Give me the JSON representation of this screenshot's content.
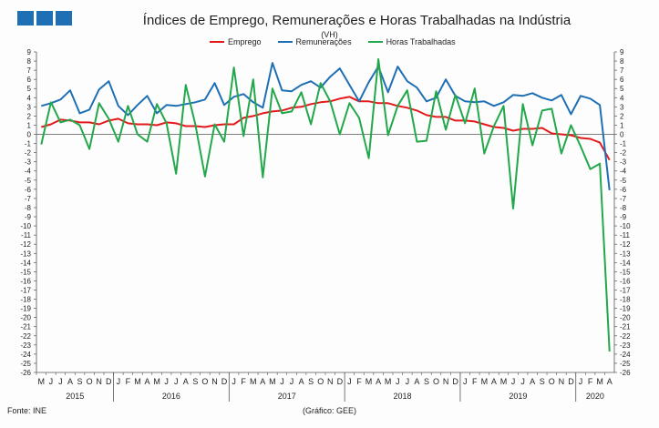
{
  "header": {
    "title": "Índices de Emprego, Remunerações e Horas Trabalhadas na Indústria",
    "unit": "(VH)"
  },
  "footer": {
    "source": "Fonte: INE",
    "graphic": "(Gráfico: GEE)"
  },
  "colors": {
    "emprego": "#e31a1c",
    "remuneracoes": "#1f6fb5",
    "horas": "#22a84a"
  },
  "chart_data": {
    "type": "line",
    "title": "Índices de Emprego, Remunerações e Horas Trabalhadas na Indústria",
    "ylabel": "(VH)",
    "ylim": [
      -26,
      9
    ],
    "y_ticks": [
      9,
      8,
      7,
      6,
      5,
      4,
      3,
      2,
      1,
      0,
      -1,
      -2,
      -3,
      -4,
      -5,
      -6,
      -7,
      -8,
      -9,
      -10,
      -11,
      -12,
      -13,
      -14,
      -15,
      -16,
      -17,
      -18,
      -19,
      -20,
      -21,
      -22,
      -23,
      -24,
      -25,
      -26
    ],
    "month_labels": [
      "M",
      "J",
      "J",
      "A",
      "S",
      "O",
      "N",
      "D",
      "J",
      "F",
      "M",
      "A",
      "M",
      "J",
      "J",
      "A",
      "S",
      "O",
      "N",
      "D",
      "J",
      "F",
      "M",
      "A",
      "M",
      "J",
      "J",
      "A",
      "S",
      "O",
      "N",
      "D",
      "J",
      "F",
      "M",
      "A",
      "M",
      "J",
      "J",
      "A",
      "S",
      "O",
      "N",
      "D",
      "J",
      "F",
      "M",
      "A",
      "M",
      "J",
      "J",
      "A",
      "S",
      "O",
      "N",
      "D",
      "J",
      "F",
      "M",
      "A"
    ],
    "year_labels": [
      {
        "label": "2015",
        "start": 0,
        "end": 7
      },
      {
        "label": "2016",
        "start": 8,
        "end": 19
      },
      {
        "label": "2017",
        "start": 20,
        "end": 31
      },
      {
        "label": "2018",
        "start": 32,
        "end": 43
      },
      {
        "label": "2019",
        "start": 44,
        "end": 55
      },
      {
        "label": "2020",
        "start": 56,
        "end": 59
      }
    ],
    "legend_position": "top",
    "grid": false,
    "series": [
      {
        "name": "Emprego",
        "color": "#e31a1c",
        "values": [
          0.8,
          1.1,
          1.6,
          1.5,
          1.3,
          1.3,
          1.1,
          1.5,
          1.7,
          1.2,
          1.1,
          1.1,
          1.0,
          1.3,
          1.2,
          0.9,
          0.9,
          0.8,
          1.0,
          1.1,
          1.1,
          1.8,
          2.0,
          2.3,
          2.5,
          2.6,
          2.9,
          3.0,
          3.3,
          3.5,
          3.6,
          3.9,
          4.1,
          3.6,
          3.6,
          3.4,
          3.4,
          3.1,
          2.9,
          2.6,
          2.1,
          1.9,
          1.9,
          1.5,
          1.5,
          1.4,
          1.1,
          0.8,
          0.7,
          0.4,
          0.6,
          0.6,
          0.7,
          0.1,
          0.0,
          -0.1,
          -0.4,
          -0.5,
          -0.9,
          -2.8
        ]
      },
      {
        "name": "Remunerações",
        "color": "#1f6fb5",
        "values": [
          3.1,
          3.4,
          3.8,
          4.8,
          2.3,
          2.7,
          4.9,
          5.8,
          3.1,
          2.1,
          3.2,
          4.2,
          2.3,
          3.2,
          3.1,
          3.3,
          3.5,
          3.8,
          5.6,
          3.2,
          4.1,
          4.4,
          3.5,
          2.9,
          7.8,
          4.8,
          4.7,
          5.4,
          5.8,
          5.1,
          6.3,
          7.2,
          5.4,
          3.6,
          5.7,
          7.4,
          4.6,
          7.4,
          5.8,
          5.1,
          3.6,
          4.0,
          6.0,
          4.2,
          3.6,
          3.5,
          3.6,
          3.1,
          3.5,
          4.3,
          4.2,
          4.5,
          4.0,
          3.7,
          4.3,
          2.2,
          4.2,
          3.9,
          3.2,
          -6.1
        ]
      },
      {
        "name": "Horas Trabalhadas",
        "color": "#22a84a",
        "values": [
          -1.1,
          3.5,
          1.3,
          1.6,
          1.0,
          -1.6,
          3.4,
          1.7,
          -0.8,
          3.1,
          0.0,
          -0.8,
          3.3,
          1.2,
          -4.3,
          5.4,
          1.1,
          -4.6,
          1.1,
          -0.8,
          7.3,
          -0.2,
          6.0,
          -4.7,
          5.0,
          2.3,
          2.5,
          4.6,
          1.1,
          5.6,
          3.6,
          0.0,
          3.4,
          1.8,
          -2.6,
          8.2,
          -0.1,
          3.1,
          4.8,
          -0.8,
          -0.7,
          4.7,
          0.5,
          4.3,
          1.2,
          5.0,
          -2.1,
          0.9,
          3.1,
          -8.1,
          3.3,
          -1.2,
          2.6,
          2.8,
          -2.1,
          1.0,
          -1.3,
          -3.8,
          -3.2,
          -23.7
        ]
      }
    ]
  }
}
